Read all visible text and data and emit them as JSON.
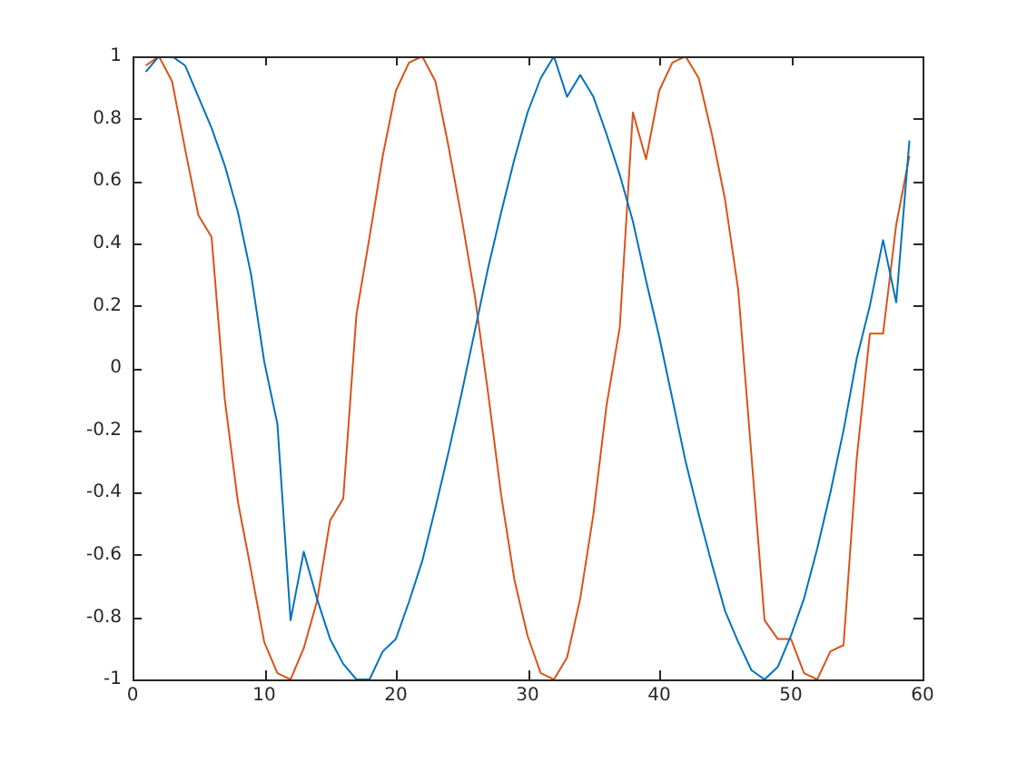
{
  "chart_data": {
    "type": "line",
    "x": [
      1,
      2,
      3,
      4,
      5,
      6,
      7,
      8,
      9,
      10,
      11,
      12,
      13,
      14,
      15,
      16,
      17,
      18,
      19,
      20,
      21,
      22,
      23,
      24,
      25,
      26,
      27,
      28,
      29,
      30,
      31,
      32,
      33,
      34,
      35,
      36,
      37,
      38,
      39,
      40,
      41,
      42,
      43,
      44,
      45,
      46,
      47,
      48,
      49,
      50,
      51,
      52,
      53,
      54,
      55,
      56,
      57,
      58,
      59
    ],
    "series": [
      {
        "color": "#0072bd",
        "values": [
          0.95,
          1.0,
          1.0,
          0.97,
          0.87,
          0.77,
          0.65,
          0.5,
          0.3,
          0.02,
          -0.18,
          -0.81,
          -0.59,
          -0.74,
          -0.87,
          -0.95,
          -1.0,
          -1.0,
          -0.91,
          -0.87,
          -0.75,
          -0.62,
          -0.45,
          -0.27,
          -0.08,
          0.12,
          0.32,
          0.5,
          0.67,
          0.82,
          0.93,
          1.0,
          0.87,
          0.94,
          0.87,
          0.75,
          0.62,
          0.47,
          0.28,
          0.1,
          -0.1,
          -0.3,
          -0.47,
          -0.63,
          -0.78,
          -0.88,
          -0.97,
          -1.0,
          -0.96,
          -0.86,
          -0.74,
          -0.58,
          -0.4,
          -0.2,
          0.03,
          0.2,
          0.41,
          0.21,
          0.73
        ]
      },
      {
        "color": "#d95319",
        "values": [
          0.97,
          1.0,
          0.92,
          0.7,
          0.49,
          0.42,
          -0.1,
          -0.43,
          -0.65,
          -0.88,
          -0.98,
          -1.0,
          -0.9,
          -0.75,
          -0.49,
          -0.42,
          0.17,
          0.42,
          0.68,
          0.89,
          0.98,
          1.0,
          0.92,
          0.71,
          0.48,
          0.23,
          -0.08,
          -0.41,
          -0.68,
          -0.86,
          -0.98,
          -1.0,
          -0.93,
          -0.74,
          -0.47,
          -0.12,
          0.13,
          0.82,
          0.67,
          0.89,
          0.98,
          1.0,
          0.93,
          0.75,
          0.54,
          0.25,
          -0.28,
          -0.81,
          -0.87,
          -0.87,
          -0.98,
          -1.0,
          -0.91,
          -0.89,
          -0.29,
          0.11,
          0.11,
          0.46,
          0.68
        ]
      }
    ],
    "xlim": [
      0,
      60
    ],
    "xticks": [
      0,
      10,
      20,
      30,
      40,
      50,
      60
    ],
    "ylim": [
      -1,
      1
    ],
    "yticks": [
      -1,
      -0.8,
      -0.6,
      -0.4,
      -0.2,
      0,
      0.2,
      0.4,
      0.6,
      0.8,
      1
    ],
    "grid": false,
    "legend": false,
    "marker": "none",
    "line_style": "solid"
  }
}
